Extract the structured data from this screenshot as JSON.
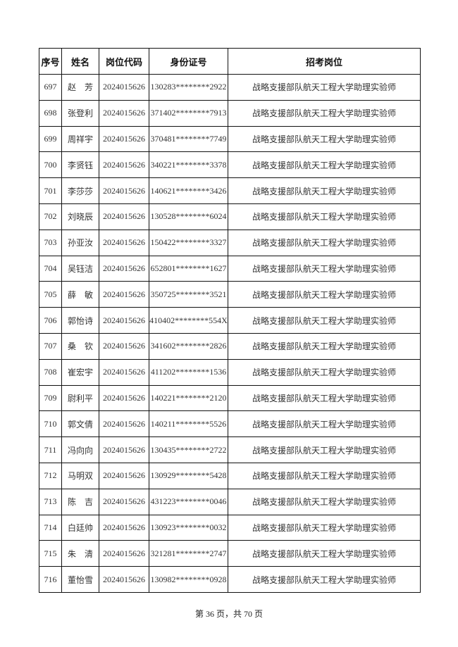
{
  "table": {
    "headers": [
      "序号",
      "姓名",
      "岗位代码",
      "身份证号",
      "招考岗位"
    ],
    "rows": [
      [
        "697",
        "赵　芳",
        "2024015626",
        "130283********2922",
        "战略支援部队航天工程大学助理实验师"
      ],
      [
        "698",
        "张登利",
        "2024015626",
        "371402********7913",
        "战略支援部队航天工程大学助理实验师"
      ],
      [
        "699",
        "周祥宇",
        "2024015626",
        "370481********7749",
        "战略支援部队航天工程大学助理实验师"
      ],
      [
        "700",
        "李贤钰",
        "2024015626",
        "340221********3378",
        "战略支援部队航天工程大学助理实验师"
      ],
      [
        "701",
        "李莎莎",
        "2024015626",
        "140621********3426",
        "战略支援部队航天工程大学助理实验师"
      ],
      [
        "702",
        "刘晓辰",
        "2024015626",
        "130528********6024",
        "战略支援部队航天工程大学助理实验师"
      ],
      [
        "703",
        "孙亚汝",
        "2024015626",
        "150422********3327",
        "战略支援部队航天工程大学助理实验师"
      ],
      [
        "704",
        "吴钰洁",
        "2024015626",
        "652801********1627",
        "战略支援部队航天工程大学助理实验师"
      ],
      [
        "705",
        "薛　敏",
        "2024015626",
        "350725********3521",
        "战略支援部队航天工程大学助理实验师"
      ],
      [
        "706",
        "郭怡诗",
        "2024015626",
        "410402********554X",
        "战略支援部队航天工程大学助理实验师"
      ],
      [
        "707",
        "桑　钦",
        "2024015626",
        "341602********2826",
        "战略支援部队航天工程大学助理实验师"
      ],
      [
        "708",
        "崔宏宇",
        "2024015626",
        "411202********1536",
        "战略支援部队航天工程大学助理实验师"
      ],
      [
        "709",
        "尉利平",
        "2024015626",
        "140221********2120",
        "战略支援部队航天工程大学助理实验师"
      ],
      [
        "710",
        "郭文倩",
        "2024015626",
        "140211********5526",
        "战略支援部队航天工程大学助理实验师"
      ],
      [
        "711",
        "冯向向",
        "2024015626",
        "130435********2722",
        "战略支援部队航天工程大学助理实验师"
      ],
      [
        "712",
        "马明双",
        "2024015626",
        "130929********5428",
        "战略支援部队航天工程大学助理实验师"
      ],
      [
        "713",
        "陈　吉",
        "2024015626",
        "431223********0046",
        "战略支援部队航天工程大学助理实验师"
      ],
      [
        "714",
        "白廷帅",
        "2024015626",
        "130923********0032",
        "战略支援部队航天工程大学助理实验师"
      ],
      [
        "715",
        "朱　清",
        "2024015626",
        "321281********2747",
        "战略支援部队航天工程大学助理实验师"
      ],
      [
        "716",
        "董怡雪",
        "2024015626",
        "130982********0928",
        "战略支援部队航天工程大学助理实验师"
      ]
    ]
  },
  "footer": {
    "page_label": "第 36 页，共 70 页"
  }
}
